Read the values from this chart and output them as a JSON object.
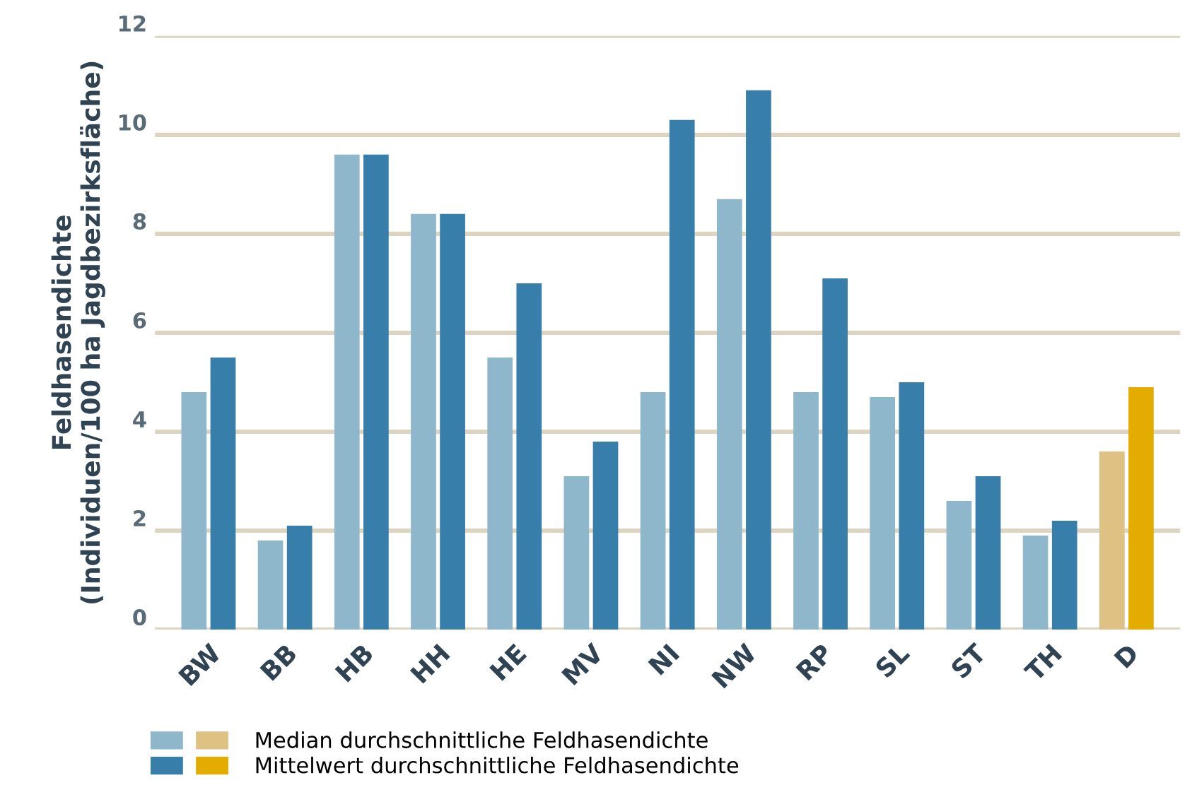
{
  "chart_data": {
    "type": "bar",
    "ylabel": "Feldhasendichte\n(Individuen/100 ha Jagdbezirksfläche)",
    "categories": [
      "BW",
      "BB",
      "HB",
      "HH",
      "HE",
      "MV",
      "NI",
      "NW",
      "RP",
      "SL",
      "ST",
      "TH",
      "D"
    ],
    "series": [
      {
        "name": "Median durchschnittliche Feldhasendichte",
        "color": "#8fb7cc",
        "colors": [
          "#8fb7cc",
          "#8fb7cc",
          "#8fb7cc",
          "#8fb7cc",
          "#8fb7cc",
          "#8fb7cc",
          "#8fb7cc",
          "#8fb7cc",
          "#8fb7cc",
          "#8fb7cc",
          "#8fb7cc",
          "#8fb7cc",
          "#dfc183"
        ],
        "values": [
          4.8,
          1.8,
          9.6,
          8.4,
          5.5,
          3.1,
          4.8,
          8.7,
          4.8,
          4.7,
          2.6,
          1.9,
          3.6
        ]
      },
      {
        "name": "Mittelwert durchschnittliche Feldhasendichte",
        "color": "#377eab",
        "colors": [
          "#377eab",
          "#377eab",
          "#377eab",
          "#377eab",
          "#377eab",
          "#377eab",
          "#377eab",
          "#377eab",
          "#377eab",
          "#377eab",
          "#377eab",
          "#377eab",
          "#e5ac00"
        ],
        "values": [
          5.5,
          2.1,
          9.6,
          8.4,
          7.0,
          3.8,
          10.3,
          10.9,
          7.1,
          5.0,
          3.1,
          2.2,
          4.9
        ]
      }
    ],
    "ylim": [
      0,
      12
    ],
    "yticks": [
      0,
      2,
      4,
      6,
      8,
      10,
      12
    ],
    "grid": "y",
    "legend": "bottom left"
  }
}
